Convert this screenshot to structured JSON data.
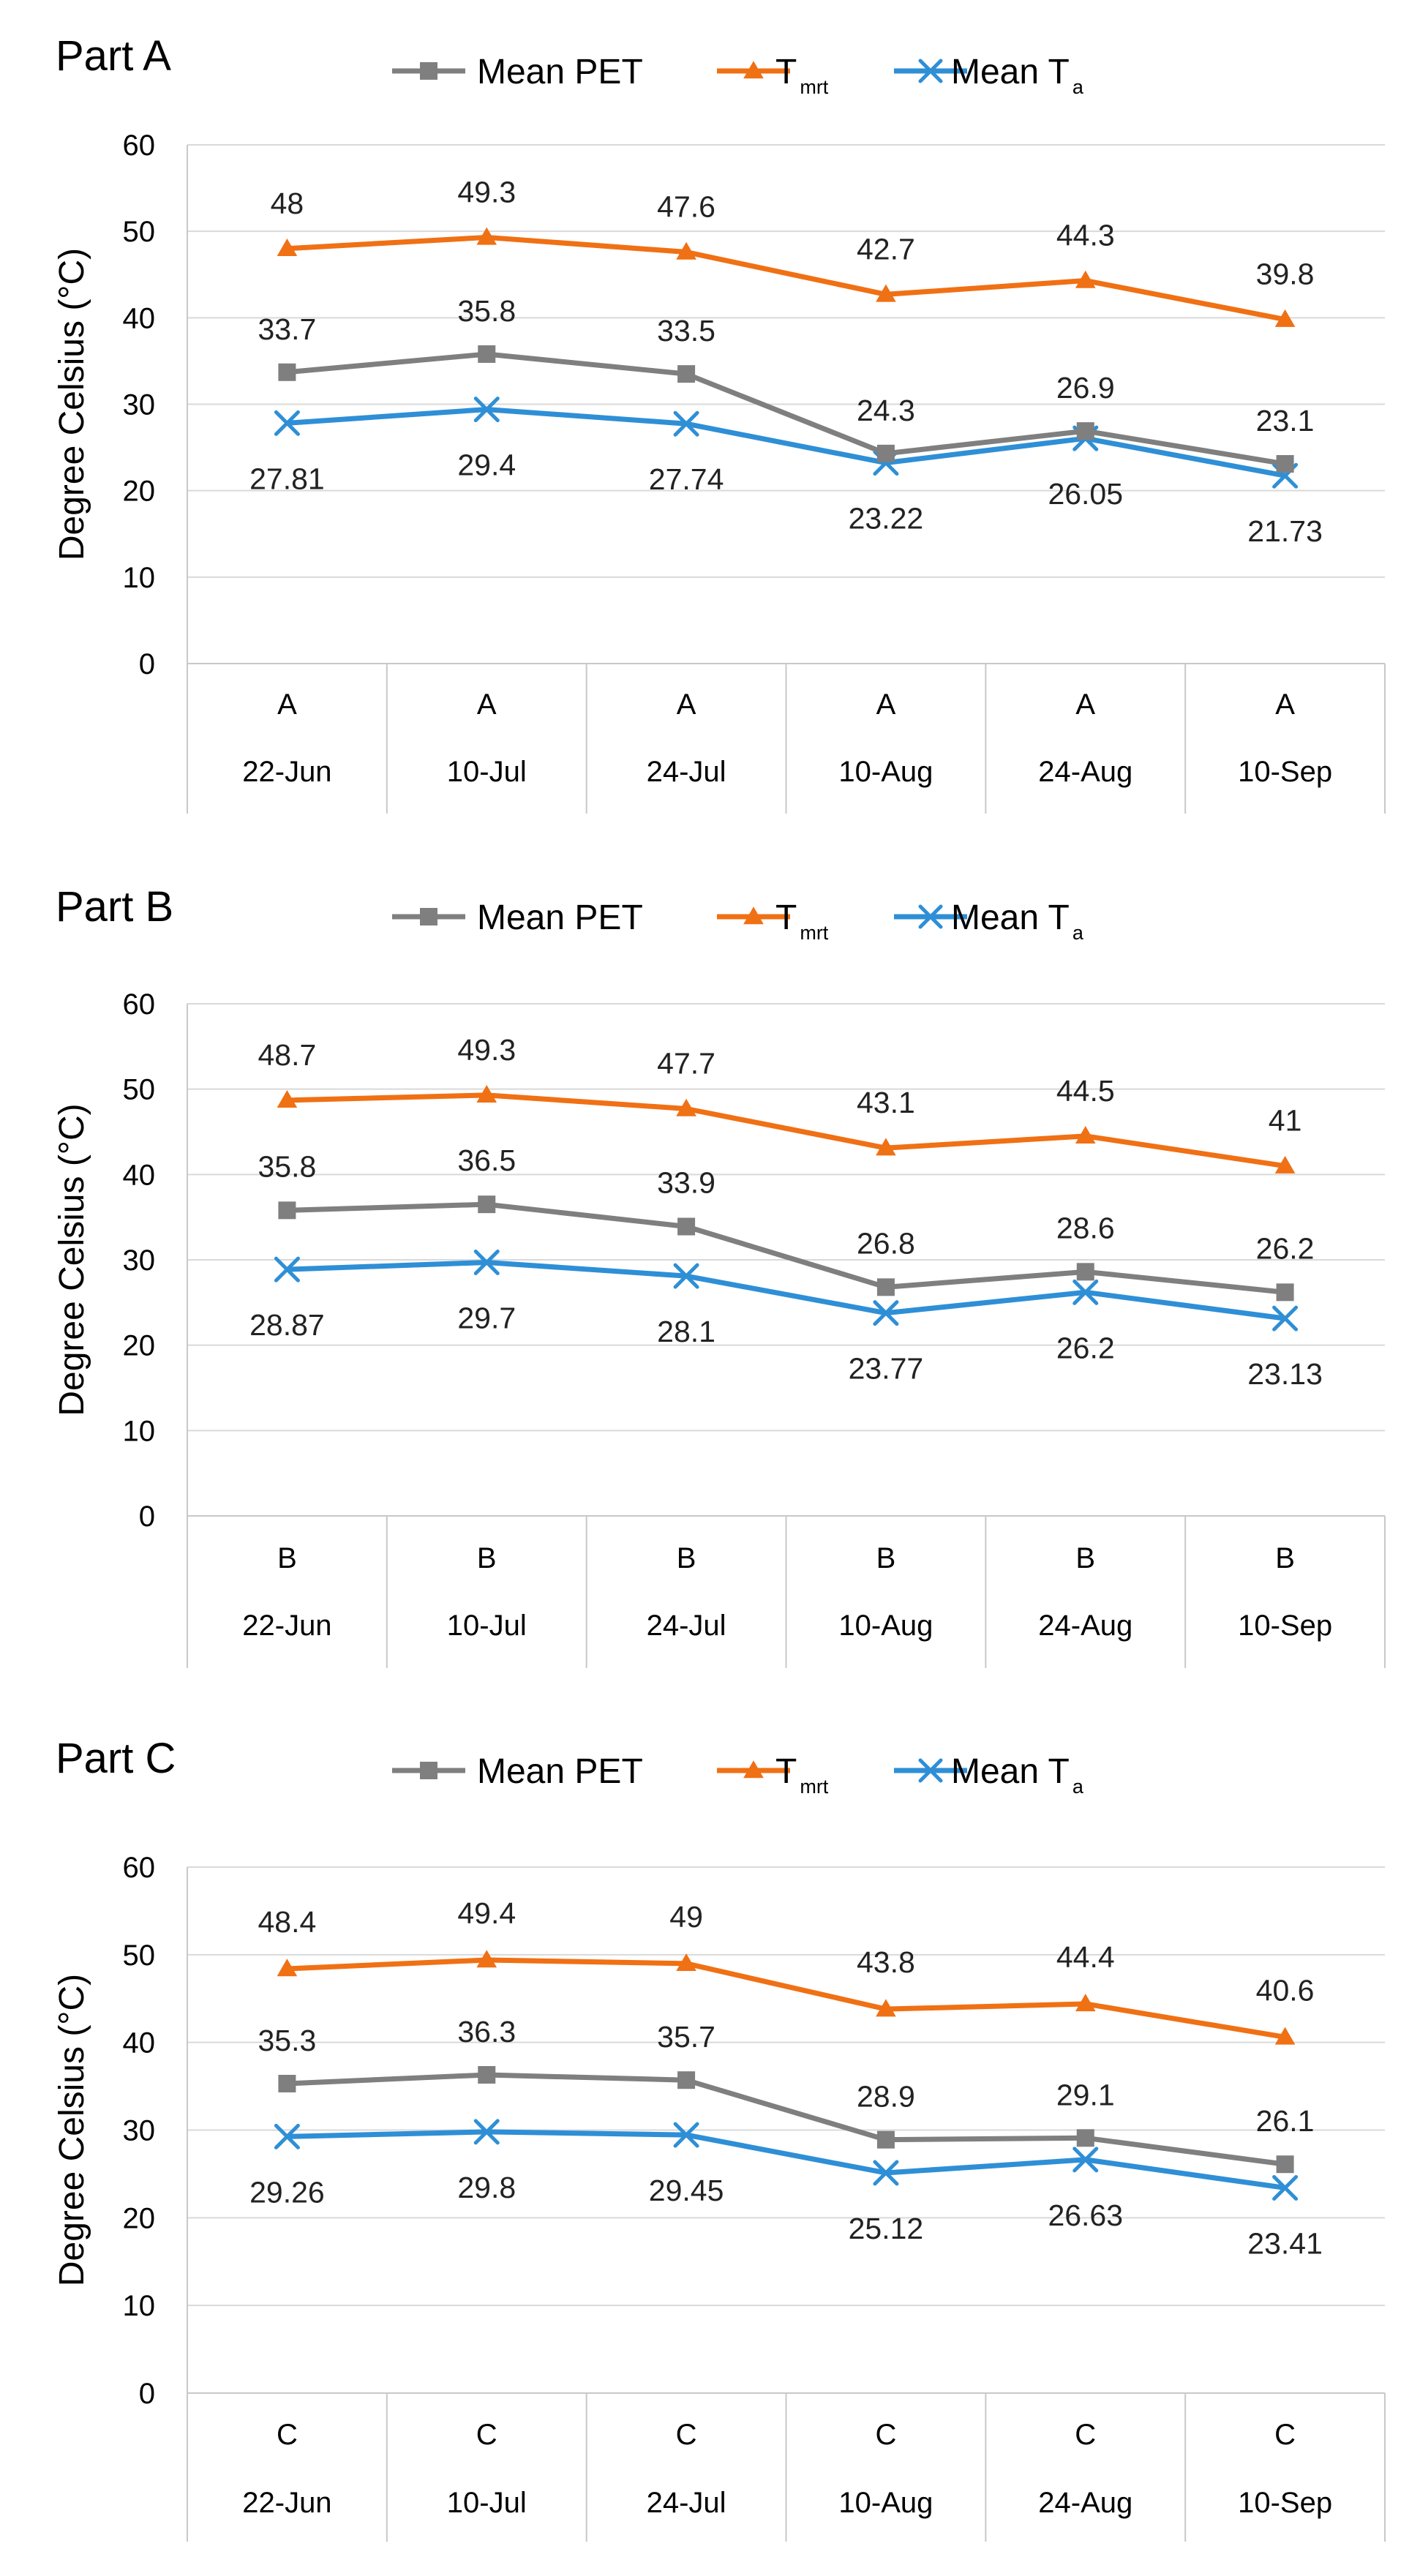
{
  "colors": {
    "mean_pet": "#7f7f7f",
    "tmrt": "#f07014",
    "mean_ta": "#2e8fd6",
    "grid": "#d9d9d9",
    "axis": "#c8c8c8"
  },
  "legend_entries": [
    {
      "key": "mean_pet",
      "label": "Mean PET",
      "sub": "",
      "marker": "square"
    },
    {
      "key": "tmrt",
      "label": "T",
      "sub": "mrt",
      "marker": "triangle"
    },
    {
      "key": "mean_ta",
      "label": "Mean T",
      "sub": "a",
      "marker": "x"
    }
  ],
  "chart_data": [
    {
      "type": "line",
      "title": "Part A",
      "ylabel": "Degree Celsius (°C)",
      "ylim": [
        0,
        60
      ],
      "yticks": [
        0,
        10,
        20,
        30,
        40,
        50,
        60
      ],
      "grid": true,
      "legend_position": "top-center",
      "categories": [
        "22-Jun",
        "10-Jul",
        "24-Jul",
        "10-Aug",
        "24-Aug",
        "10-Sep"
      ],
      "category_group": "A",
      "series": [
        {
          "key": "mean_pet",
          "name": "Mean PET",
          "values": [
            33.7,
            35.8,
            33.5,
            24.3,
            26.9,
            23.1
          ],
          "labels": [
            "33.7",
            "35.8",
            "33.5",
            "24.3",
            "26.9",
            "23.1"
          ]
        },
        {
          "key": "tmrt",
          "name": "Tmrt",
          "values": [
            48,
            49.3,
            47.6,
            42.7,
            44.3,
            39.8
          ],
          "labels": [
            "48",
            "49.3",
            "47.6",
            "42.7",
            "44.3",
            "39.8"
          ]
        },
        {
          "key": "mean_ta",
          "name": "Mean Ta",
          "values": [
            27.81,
            29.4,
            27.74,
            23.22,
            26.05,
            21.73
          ],
          "labels": [
            "27.81",
            "29.4",
            "27.74",
            "23.22",
            "26.05",
            "21.73"
          ]
        }
      ]
    },
    {
      "type": "line",
      "title": "Part B",
      "ylabel": "Degree Celsius (°C)",
      "ylim": [
        0,
        60
      ],
      "yticks": [
        0,
        10,
        20,
        30,
        40,
        50,
        60
      ],
      "grid": true,
      "legend_position": "top-center",
      "categories": [
        "22-Jun",
        "10-Jul",
        "24-Jul",
        "10-Aug",
        "24-Aug",
        "10-Sep"
      ],
      "category_group": "B",
      "series": [
        {
          "key": "mean_pet",
          "name": "Mean PET",
          "values": [
            35.8,
            36.5,
            33.9,
            26.8,
            28.6,
            26.2
          ],
          "labels": [
            "35.8",
            "36.5",
            "33.9",
            "26.8",
            "28.6",
            "26.2"
          ]
        },
        {
          "key": "tmrt",
          "name": "Tmrt",
          "values": [
            48.7,
            49.3,
            47.7,
            43.1,
            44.5,
            41
          ],
          "labels": [
            "48.7",
            "49.3",
            "47.7",
            "43.1",
            "44.5",
            "41"
          ]
        },
        {
          "key": "mean_ta",
          "name": "Mean Ta",
          "values": [
            28.87,
            29.7,
            28.1,
            23.77,
            26.2,
            23.13
          ],
          "labels": [
            "28.87",
            "29.7",
            "28.1",
            "23.77",
            "26.2",
            "23.13"
          ]
        }
      ]
    },
    {
      "type": "line",
      "title": "Part C",
      "ylabel": "Degree Celsius (°C)",
      "ylim": [
        0,
        60
      ],
      "yticks": [
        0,
        10,
        20,
        30,
        40,
        50,
        60
      ],
      "grid": true,
      "legend_position": "top-center",
      "categories": [
        "22-Jun",
        "10-Jul",
        "24-Jul",
        "10-Aug",
        "24-Aug",
        "10-Sep"
      ],
      "category_group": "C",
      "series": [
        {
          "key": "mean_pet",
          "name": "Mean PET",
          "values": [
            35.3,
            36.3,
            35.7,
            28.9,
            29.1,
            26.1
          ],
          "labels": [
            "35.3",
            "36.3",
            "35.7",
            "28.9",
            "29.1",
            "26.1"
          ]
        },
        {
          "key": "tmrt",
          "name": "Tmrt",
          "values": [
            48.4,
            49.4,
            49,
            43.8,
            44.4,
            40.6
          ],
          "labels": [
            "48.4",
            "49.4",
            "49",
            "43.8",
            "44.4",
            "40.6"
          ]
        },
        {
          "key": "mean_ta",
          "name": "Mean Ta",
          "values": [
            29.26,
            29.8,
            29.45,
            25.12,
            26.63,
            23.41
          ],
          "labels": [
            "29.26",
            "29.8",
            "29.45",
            "25.12",
            "26.63",
            "23.41"
          ]
        }
      ]
    }
  ]
}
